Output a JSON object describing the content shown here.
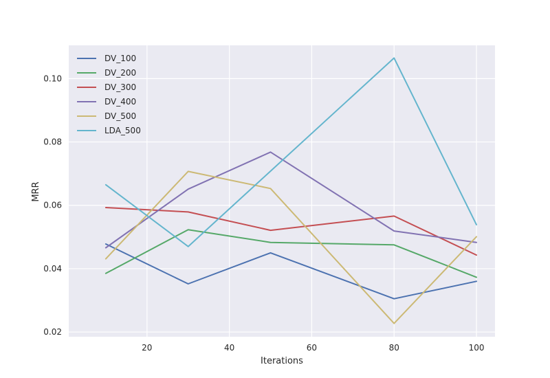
{
  "chart_data": {
    "type": "line",
    "title": "",
    "xlabel": "Iterations",
    "ylabel": "MRR",
    "x": [
      10,
      30,
      50,
      80,
      100
    ],
    "xlim": [
      1,
      104.5
    ],
    "ylim": [
      0.0185,
      0.1105
    ],
    "xticks": [
      20,
      40,
      60,
      80,
      100
    ],
    "yticks": [
      0.02,
      0.04,
      0.06,
      0.08,
      0.1
    ],
    "ytick_labels": [
      "0.02",
      "0.04",
      "0.06",
      "0.08",
      "0.10"
    ],
    "grid": true,
    "legend_position": "upper-left",
    "series": [
      {
        "name": "DV_100",
        "color": "#4c72b0",
        "values": [
          0.0478,
          0.0352,
          0.045,
          0.0305,
          0.036
        ]
      },
      {
        "name": "DV_200",
        "color": "#55a868",
        "values": [
          0.0385,
          0.0523,
          0.0483,
          0.0475,
          0.0373
        ]
      },
      {
        "name": "DV_300",
        "color": "#c44e52",
        "values": [
          0.0593,
          0.0579,
          0.0521,
          0.0566,
          0.0443
        ]
      },
      {
        "name": "DV_400",
        "color": "#8172b2",
        "values": [
          0.0466,
          0.0651,
          0.0768,
          0.0519,
          0.0483
        ]
      },
      {
        "name": "DV_500",
        "color": "#ccb974",
        "values": [
          0.0431,
          0.0707,
          0.0653,
          0.0227,
          0.0501
        ]
      },
      {
        "name": "LDA_500",
        "color": "#64b5cd",
        "values": [
          0.0665,
          0.047,
          0.0708,
          0.1065,
          0.0539
        ]
      }
    ]
  }
}
